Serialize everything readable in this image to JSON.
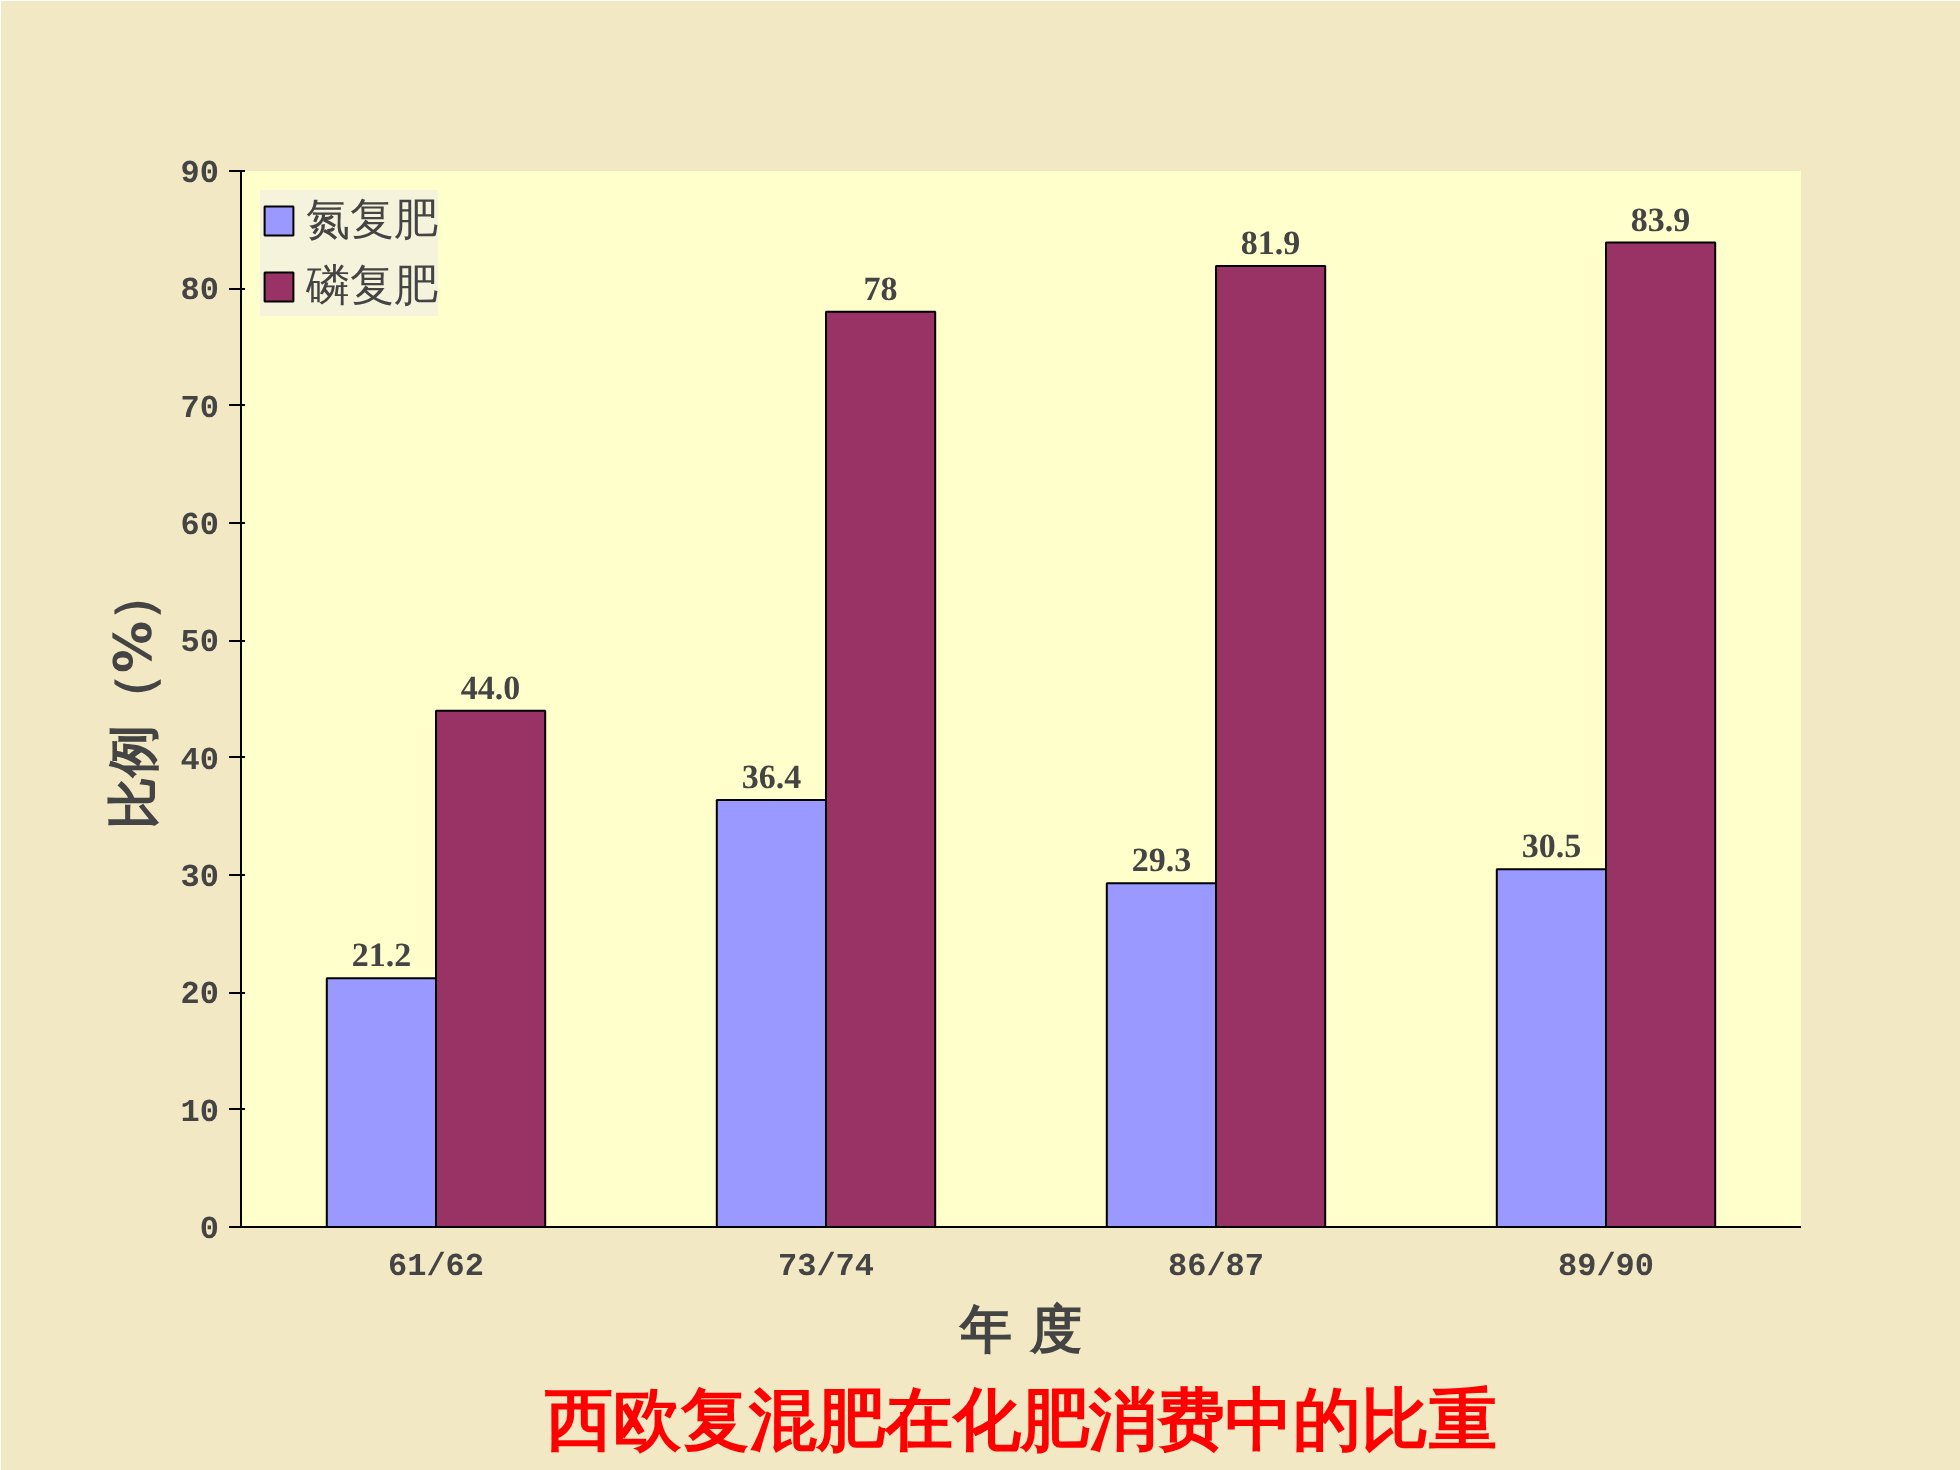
{
  "chart_data": {
    "type": "bar",
    "title": "西欧复混肥在化肥消费中的比重",
    "xlabel": "年 度",
    "ylabel": "比例（%）",
    "categories": [
      "61/62",
      "73/74",
      "86/87",
      "89/90"
    ],
    "series": [
      {
        "name": "氮复肥",
        "color": "#9999ff",
        "values": [
          21.2,
          36.4,
          29.3,
          30.5
        ],
        "value_labels": [
          "21.2",
          "36.4",
          "29.3",
          "30.5"
        ]
      },
      {
        "name": "磷复肥",
        "color": "#993366",
        "values": [
          44.0,
          78,
          81.9,
          83.9
        ],
        "value_labels": [
          "44.0",
          "78",
          "81.9",
          "83.9"
        ]
      }
    ],
    "ylim": [
      0,
      90
    ],
    "yticks": [
      0,
      10,
      20,
      30,
      40,
      50,
      60,
      70,
      80,
      90
    ],
    "grid": false,
    "legend": "top left"
  }
}
